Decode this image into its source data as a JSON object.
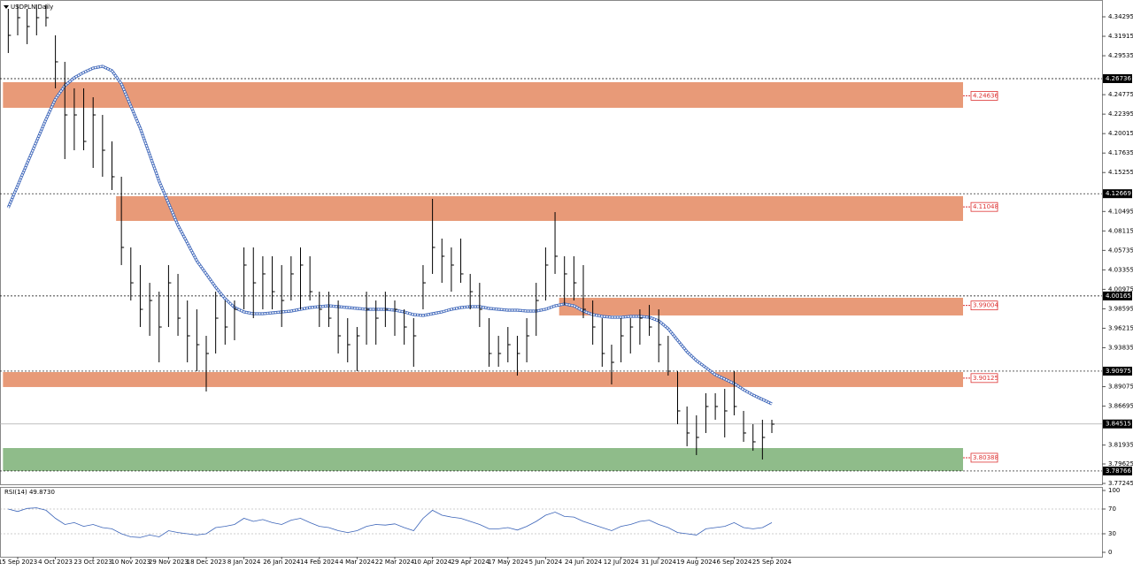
{
  "chart_data": {
    "type": "ohlc",
    "title": "USDPLN,Daily",
    "categories": [
      null,
      "15 Sep 2023",
      null,
      null,
      null,
      "4 Oct 2023",
      null,
      null,
      null,
      "23 Oct 2023",
      null,
      null,
      null,
      "10 Nov 2023",
      null,
      null,
      null,
      "29 Nov 2023",
      null,
      null,
      null,
      "18 Dec 2023",
      null,
      null,
      null,
      "8 Jan 2024",
      null,
      null,
      null,
      "26 Jan 2024",
      null,
      null,
      null,
      "14 Feb 2024",
      null,
      null,
      null,
      "4 Mar 2024",
      null,
      null,
      null,
      "22 Mar 2024",
      null,
      null,
      null,
      "10 Apr 2024",
      null,
      null,
      null,
      "29 Apr 2024",
      null,
      null,
      null,
      "17 May 2024",
      null,
      null,
      null,
      "5 Jun 2024",
      null,
      null,
      null,
      "24 Jun 2024",
      null,
      null,
      null,
      "12 Jul 2024",
      null,
      null,
      null,
      "31 Jul 2024",
      null,
      null,
      null,
      "19 Aug 2024",
      null,
      null,
      null,
      "6 Sep 2024",
      null,
      null,
      null,
      "25 Sep 2024"
    ],
    "high": [
      4.3527,
      4.3581,
      4.3527,
      4.3581,
      4.3581,
      4.3203,
      4.2879,
      4.2555,
      4.2555,
      4.2446,
      4.223,
      4.1906,
      4.1474,
      4.061,
      4.0394,
      4.0177,
      4.0069,
      4.0394,
      4.0286,
      3.9961,
      3.9853,
      3.9529,
      4.0069,
      3.9961,
      3.9961,
      4.061,
      4.061,
      4.0502,
      4.0502,
      4.0394,
      4.0502,
      4.061,
      4.0502,
      4.0069,
      4.0069,
      3.9961,
      3.9745,
      3.9637,
      4.0069,
      3.9961,
      4.0069,
      3.9961,
      3.9853,
      3.9745,
      4.0394,
      4.1204,
      4.0718,
      4.061,
      4.0718,
      4.0286,
      4.0177,
      3.9745,
      3.9529,
      3.9637,
      3.9529,
      3.9745,
      4.0177,
      4.061,
      4.1042,
      4.0502,
      4.0502,
      4.0394,
      3.9961,
      3.9745,
      3.9421,
      3.9745,
      3.9745,
      3.9853,
      3.9907,
      3.9853,
      3.9529,
      3.9097,
      3.8665,
      3.8557,
      3.8827,
      3.8827,
      3.8881,
      3.9097,
      3.8611,
      3.8449,
      3.8503,
      3.8503
    ],
    "low": [
      4.2987,
      4.3203,
      4.3095,
      4.3203,
      4.3311,
      4.2555,
      4.169,
      4.1798,
      4.1798,
      4.1582,
      4.1474,
      4.1312,
      4.0394,
      3.9961,
      3.9637,
      3.9529,
      3.9205,
      3.9637,
      3.9529,
      3.9205,
      3.9097,
      3.8849,
      3.9313,
      3.9421,
      3.9475,
      3.9853,
      3.9745,
      3.9853,
      3.9853,
      3.9637,
      3.9961,
      3.9853,
      3.9961,
      3.9637,
      3.9637,
      3.9313,
      3.9205,
      3.9097,
      3.9421,
      3.9421,
      3.9637,
      3.9529,
      3.9421,
      3.9151,
      3.9853,
      4.0286,
      4.0177,
      4.0069,
      4.0177,
      3.9853,
      3.9637,
      3.9151,
      3.9151,
      3.9205,
      3.9043,
      3.9205,
      3.9529,
      3.9961,
      4.0286,
      3.9907,
      3.9961,
      3.9745,
      3.9421,
      3.9151,
      3.8935,
      3.9205,
      3.9313,
      3.9421,
      3.9529,
      3.9205,
      3.9043,
      3.8449,
      3.8179,
      3.8071,
      3.8341,
      3.8503,
      3.8287,
      3.8557,
      3.8233,
      3.8124,
      3.8017,
      3.8341
    ],
    "close": [
      4.3203,
      4.3419,
      4.3311,
      4.3419,
      4.3419,
      4.2879,
      4.223,
      4.223,
      4.1906,
      4.223,
      4.1798,
      4.1474,
      4.061,
      4.0177,
      3.9853,
      3.9961,
      3.9637,
      4.0177,
      3.9745,
      3.9529,
      3.9421,
      3.9313,
      3.9745,
      3.9637,
      3.9853,
      4.0394,
      4.0177,
      4.0286,
      4.0069,
      3.9961,
      4.0286,
      4.0394,
      4.0069,
      3.9853,
      3.9745,
      3.9529,
      3.9421,
      3.9529,
      3.9853,
      3.9745,
      3.9853,
      3.9853,
      3.9637,
      3.9529,
      4.0177,
      4.061,
      4.0502,
      4.0394,
      4.0286,
      4.0069,
      3.9853,
      3.9313,
      3.9313,
      3.9421,
      3.9313,
      3.9529,
      3.9961,
      4.0394,
      4.0502,
      4.0286,
      4.0177,
      3.9853,
      3.9637,
      3.9313,
      3.9205,
      3.9529,
      3.9637,
      3.9745,
      3.9637,
      3.9421,
      3.9097,
      3.8611,
      3.8341,
      3.8287,
      3.8665,
      3.8665,
      3.8611,
      3.8665,
      3.8341,
      3.8233,
      3.8287,
      3.8449
    ],
    "bar_color": "#000000",
    "ma": {
      "color": "#3a63b8",
      "values": [
        4.1096,
        4.1366,
        4.1636,
        4.1906,
        4.2176,
        4.2425,
        4.2587,
        4.2684,
        4.2749,
        4.2803,
        4.2825,
        4.2771,
        4.2609,
        4.2338,
        4.2068,
        4.1744,
        4.142,
        4.115,
        4.088,
        4.0664,
        4.0448,
        4.0286,
        4.0123,
        3.9983,
        3.9875,
        3.9821,
        3.9799,
        3.9799,
        3.981,
        3.9821,
        3.9832,
        3.9853,
        3.9875,
        3.9886,
        3.9897,
        3.9886,
        3.9875,
        3.9864,
        3.9853,
        3.9853,
        3.9853,
        3.9843,
        3.9821,
        3.9788,
        3.9778,
        3.9799,
        3.9821,
        3.9853,
        3.9875,
        3.9886,
        3.9886,
        3.9864,
        3.9853,
        3.9843,
        3.9843,
        3.9832,
        3.9832,
        3.9853,
        3.9897,
        3.9918,
        3.9897,
        3.9832,
        3.9788,
        3.9767,
        3.9756,
        3.9756,
        3.9767,
        3.9767,
        3.9756,
        3.9713,
        3.9616,
        3.9475,
        3.9335,
        3.9227,
        3.914,
        3.9054,
        3.9,
        3.8946,
        3.887,
        3.8805,
        3.8751,
        3.8697
      ]
    },
    "ylim": [
      3.7714,
      4.3635
    ],
    "yticks": [
      4.34295,
      4.31915,
      4.29535,
      4.24775,
      4.22395,
      4.20015,
      4.17635,
      4.15255,
      4.10495,
      4.08115,
      4.05735,
      4.03355,
      4.00975,
      3.98595,
      3.96215,
      3.93835,
      3.89075,
      3.86695,
      3.81935,
      3.79625,
      3.77245
    ],
    "levels": [
      4.26736,
      4.12669,
      4.00165,
      3.90975,
      3.78766
    ],
    "last_price": 3.84515,
    "zones": [
      {
        "level": 4.24636,
        "top": 4.263,
        "bottom": 4.2317,
        "from": 0,
        "color": "#e89a78"
      },
      {
        "level": 4.11048,
        "top": 4.1236,
        "bottom": 4.0934,
        "from": 12,
        "color": "#e89a78"
      },
      {
        "level": 3.99004,
        "top": 3.9994,
        "bottom": 3.9778,
        "from": 59,
        "color": "#e89a78"
      },
      {
        "level": 3.90125,
        "top": 3.9086,
        "bottom": 3.8903,
        "from": 0,
        "color": "#e89a78"
      },
      {
        "level": 3.80388,
        "top": 3.8157,
        "bottom": 3.7876,
        "from": 0,
        "color": "#8fbc8a"
      }
    ],
    "rsi": {
      "label": "RSI(14) 49.8730",
      "color": "#3a63b8",
      "values": [
        70,
        66,
        71,
        72,
        68,
        55,
        45,
        48,
        42,
        45,
        40,
        38,
        30,
        25,
        24,
        28,
        25,
        35,
        32,
        30,
        28,
        30,
        40,
        42,
        45,
        55,
        50,
        53,
        48,
        45,
        52,
        55,
        48,
        42,
        40,
        35,
        32,
        35,
        42,
        45,
        44,
        46,
        40,
        35,
        55,
        68,
        60,
        57,
        55,
        50,
        45,
        38,
        38,
        40,
        36,
        42,
        50,
        60,
        65,
        58,
        57,
        50,
        45,
        40,
        35,
        42,
        45,
        50,
        52,
        45,
        40,
        32,
        30,
        28,
        38,
        40,
        42,
        48,
        40,
        38,
        40,
        48
      ],
      "ylim": [
        0,
        100
      ],
      "yticks": [
        0,
        30,
        70,
        100
      ],
      "levels": [
        30,
        70
      ]
    }
  }
}
